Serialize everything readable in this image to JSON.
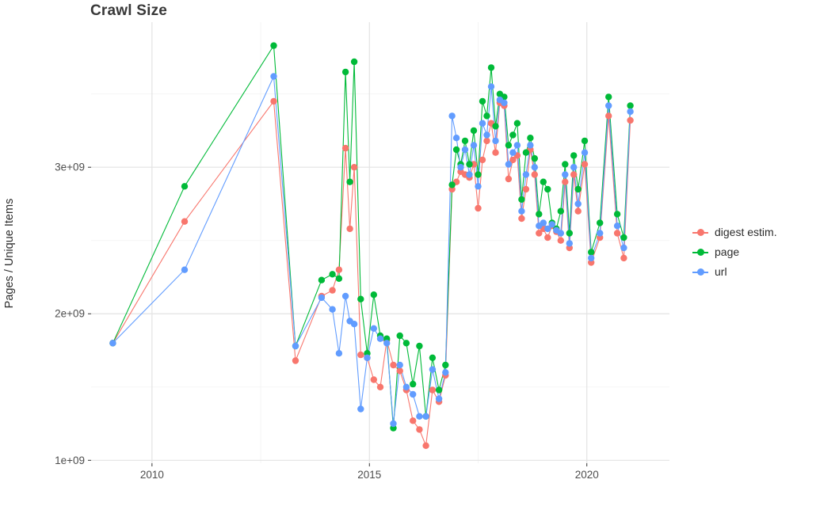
{
  "page": {
    "background": "#FFFFFF"
  },
  "chart_data": {
    "type": "line",
    "title": "Crawl Size",
    "ylabel": "Pages / Unique Items",
    "xlabel": "",
    "legend_position": "right",
    "grid": true,
    "grid_major_color": "#E3E3E3",
    "grid_minor_color": "#F2F2F2",
    "axis_text_color": "#4D4D4D",
    "title_color": "#383838",
    "xlim": [
      2008.6,
      2021.9
    ],
    "ylim": [
      980000000.0,
      3990000000.0
    ],
    "x_ticks": [
      2010,
      2015,
      2020
    ],
    "x_tick_labels": [
      "2010",
      "2015",
      "2020"
    ],
    "x_minor_gridlines": [
      2012.5,
      2017.5
    ],
    "y_ticks": [
      1000000000.0,
      2000000000.0,
      3000000000.0
    ],
    "y_tick_labels": [
      "1e+09",
      "2e+09",
      "3e+09"
    ],
    "y_minor_gridlines": [
      1500000000.0,
      2500000000.0,
      3500000000.0
    ],
    "x": [
      2009.1,
      2010.75,
      2012.8,
      2013.3,
      2013.9,
      2014.15,
      2014.3,
      2014.45,
      2014.55,
      2014.65,
      2014.8,
      2014.95,
      2015.1,
      2015.25,
      2015.4,
      2015.55,
      2015.7,
      2015.85,
      2016.0,
      2016.15,
      2016.3,
      2016.45,
      2016.6,
      2016.75,
      2016.9,
      2017.0,
      2017.1,
      2017.2,
      2017.3,
      2017.4,
      2017.5,
      2017.6,
      2017.7,
      2017.8,
      2017.9,
      2018.0,
      2018.1,
      2018.2,
      2018.3,
      2018.4,
      2018.5,
      2018.6,
      2018.7,
      2018.8,
      2018.9,
      2019.0,
      2019.1,
      2019.2,
      2019.3,
      2019.4,
      2019.5,
      2019.6,
      2019.7,
      2019.8,
      2019.95,
      2020.1,
      2020.3,
      2020.5,
      2020.7,
      2020.85,
      2021.0
    ],
    "series": [
      {
        "name": "digest estim.",
        "color": "#F8766D",
        "y": [
          1800000000.0,
          2630000000.0,
          3450000000.0,
          1680000000.0,
          2120000000.0,
          2160000000.0,
          2300000000.0,
          3130000000.0,
          2580000000.0,
          3000000000.0,
          1720000000.0,
          1700000000.0,
          1550000000.0,
          1500000000.0,
          1820000000.0,
          1650000000.0,
          1610000000.0,
          1480000000.0,
          1270000000.0,
          1210000000.0,
          1100000000.0,
          1480000000.0,
          1400000000.0,
          1580000000.0,
          2850000000.0,
          2900000000.0,
          2970000000.0,
          2950000000.0,
          2930000000.0,
          3020000000.0,
          2720000000.0,
          3050000000.0,
          3180000000.0,
          3300000000.0,
          3100000000.0,
          3440000000.0,
          3420000000.0,
          2920000000.0,
          3050000000.0,
          3080000000.0,
          2650000000.0,
          2850000000.0,
          3120000000.0,
          2950000000.0,
          2550000000.0,
          2580000000.0,
          2520000000.0,
          2600000000.0,
          2560000000.0,
          2500000000.0,
          2900000000.0,
          2450000000.0,
          2950000000.0,
          2700000000.0,
          3020000000.0,
          2350000000.0,
          2520000000.0,
          3350000000.0,
          2550000000.0,
          2380000000.0,
          3320000000.0
        ]
      },
      {
        "name": "page",
        "color": "#00BA38",
        "y": [
          1800000000.0,
          2870000000.0,
          3830000000.0,
          1780000000.0,
          2230000000.0,
          2270000000.0,
          2240000000.0,
          3650000000.0,
          2900000000.0,
          3720000000.0,
          2100000000.0,
          1730000000.0,
          2130000000.0,
          1850000000.0,
          1830000000.0,
          1220000000.0,
          1850000000.0,
          1800000000.0,
          1520000000.0,
          1780000000.0,
          1300000000.0,
          1700000000.0,
          1480000000.0,
          1650000000.0,
          2880000000.0,
          3120000000.0,
          3020000000.0,
          3180000000.0,
          3020000000.0,
          3250000000.0,
          2950000000.0,
          3450000000.0,
          3350000000.0,
          3680000000.0,
          3280000000.0,
          3500000000.0,
          3480000000.0,
          3150000000.0,
          3220000000.0,
          3300000000.0,
          2780000000.0,
          3100000000.0,
          3200000000.0,
          3060000000.0,
          2680000000.0,
          2900000000.0,
          2850000000.0,
          2620000000.0,
          2580000000.0,
          2700000000.0,
          3020000000.0,
          2550000000.0,
          3080000000.0,
          2850000000.0,
          3180000000.0,
          2420000000.0,
          2620000000.0,
          3480000000.0,
          2680000000.0,
          2520000000.0,
          3420000000.0
        ]
      },
      {
        "name": "url",
        "color": "#619CFF",
        "y": [
          1800000000.0,
          2300000000.0,
          3620000000.0,
          1780000000.0,
          2110000000.0,
          2030000000.0,
          1730000000.0,
          2120000000.0,
          1950000000.0,
          1930000000.0,
          1350000000.0,
          1700000000.0,
          1900000000.0,
          1830000000.0,
          1800000000.0,
          1250000000.0,
          1650000000.0,
          1500000000.0,
          1450000000.0,
          1300000000.0,
          1300000000.0,
          1620000000.0,
          1420000000.0,
          1600000000.0,
          3350000000.0,
          3200000000.0,
          3000000000.0,
          3120000000.0,
          2950000000.0,
          3150000000.0,
          2870000000.0,
          3300000000.0,
          3220000000.0,
          3550000000.0,
          3180000000.0,
          3460000000.0,
          3440000000.0,
          3020000000.0,
          3100000000.0,
          3150000000.0,
          2700000000.0,
          2950000000.0,
          3150000000.0,
          3000000000.0,
          2600000000.0,
          2620000000.0,
          2580000000.0,
          2610000000.0,
          2570000000.0,
          2550000000.0,
          2950000000.0,
          2480000000.0,
          3000000000.0,
          2750000000.0,
          3100000000.0,
          2380000000.0,
          2550000000.0,
          3420000000.0,
          2600000000.0,
          2450000000.0,
          3380000000.0
        ]
      }
    ]
  }
}
